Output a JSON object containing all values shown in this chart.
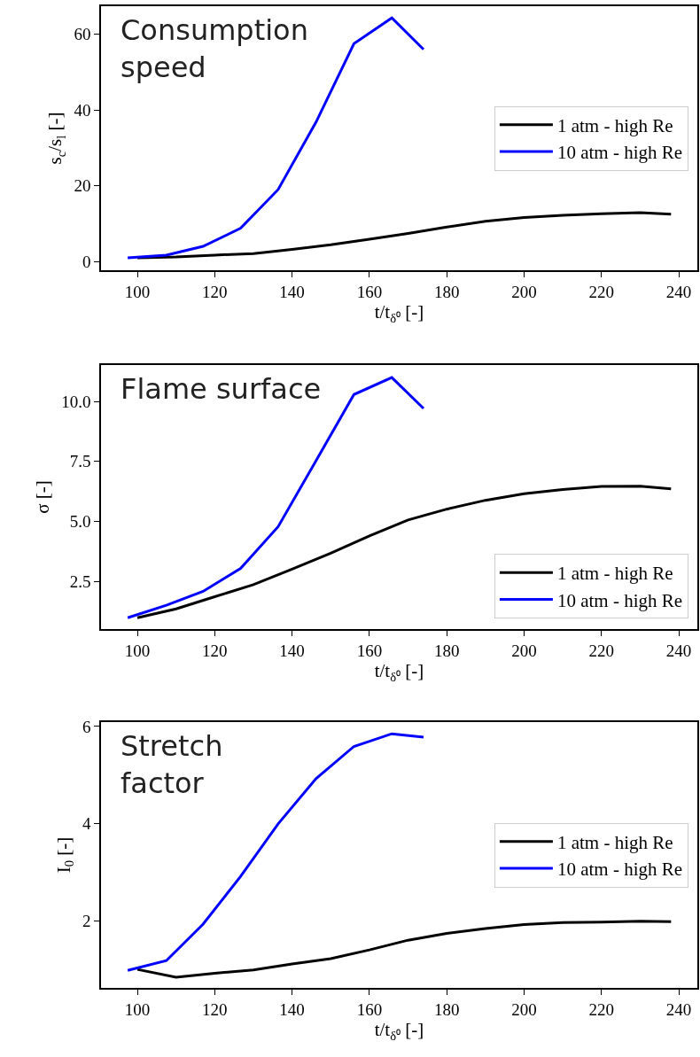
{
  "chart_data": [
    {
      "type": "line",
      "title": "Consumption speed",
      "xlabel": "t/t$_{δ⁰}$ [-]",
      "ylabel": "s$_{c}$/s$_{l}$ [-]",
      "xlim": [
        90.6,
        244.8
      ],
      "xticks": [
        100,
        120,
        140,
        160,
        180,
        200,
        220,
        240
      ],
      "ylim": [
        -2.3,
        67.4
      ],
      "yticks": [
        0,
        20,
        40,
        60
      ],
      "legend": "right",
      "series": [
        {
          "name": "1 atm - high Re",
          "color": "#000000",
          "x": [
            100,
            110,
            120,
            130,
            140,
            150,
            160,
            170,
            180,
            190,
            200,
            210,
            220,
            230,
            238
          ],
          "values": [
            1.0,
            1.2,
            1.7,
            2.1,
            3.2,
            4.4,
            5.9,
            7.4,
            9.1,
            10.6,
            11.6,
            12.2,
            12.6,
            12.9,
            12.5
          ]
        },
        {
          "name": "10 atm - high Re",
          "color": "#0000ff",
          "x": [
            97.5,
            107.5,
            117,
            126.7,
            136.4,
            146.2,
            156,
            165.8,
            174
          ],
          "values": [
            1.0,
            1.7,
            4.0,
            8.8,
            19.0,
            36.8,
            57.5,
            64.3,
            56.0
          ]
        }
      ]
    },
    {
      "type": "line",
      "title": "Flame surface",
      "xlabel": "t/t$_{δ⁰}$ [-]",
      "ylabel": "σ [-]",
      "xlim": [
        90.6,
        244.8
      ],
      "xticks": [
        100,
        120,
        140,
        160,
        180,
        200,
        220,
        240
      ],
      "ylim": [
        0.51,
        11.52
      ],
      "yticks": [
        2.5,
        {
          "value": 5,
          "label": "5.0"
        },
        7.5,
        {
          "value": 10,
          "label": "10.0"
        }
      ],
      "legend": "bottom right",
      "series": [
        {
          "name": "1 atm - high Re",
          "color": "#000000",
          "x": [
            100,
            110,
            120,
            130,
            140,
            150,
            160,
            170,
            180,
            190,
            200,
            210,
            220,
            230,
            238
          ],
          "values": [
            0.98,
            1.35,
            1.86,
            2.36,
            3.01,
            3.67,
            4.39,
            5.06,
            5.51,
            5.88,
            6.15,
            6.33,
            6.46,
            6.47,
            6.36
          ]
        },
        {
          "name": "10 atm - high Re",
          "color": "#0000ff",
          "x": [
            97.5,
            107.5,
            117,
            126.7,
            136.4,
            146.2,
            156,
            165.8,
            174
          ],
          "values": [
            0.98,
            1.5,
            2.08,
            3.04,
            4.78,
            7.53,
            10.29,
            11.0,
            9.71
          ]
        }
      ]
    },
    {
      "type": "line",
      "title": "Stretch factor",
      "xlabel": "t/t$_{δ⁰}$ [-]",
      "ylabel": "I$_{0}$ [-]",
      "xlim": [
        90.6,
        244.8
      ],
      "xticks": [
        100,
        120,
        140,
        160,
        180,
        200,
        220,
        240
      ],
      "ylim": [
        0.63,
        6.09
      ],
      "yticks": [
        2,
        4,
        6
      ],
      "legend": "right",
      "series": [
        {
          "name": "1 atm - high Re",
          "color": "#000000",
          "x": [
            100,
            110,
            120,
            130,
            140,
            150,
            160,
            170,
            180,
            190,
            200,
            210,
            220,
            230,
            238
          ],
          "values": [
            1.01,
            0.85,
            0.93,
            1.0,
            1.12,
            1.23,
            1.41,
            1.61,
            1.75,
            1.85,
            1.93,
            1.97,
            1.98,
            2.0,
            1.99
          ]
        },
        {
          "name": "10 atm - high Re",
          "color": "#0000ff",
          "x": [
            97.5,
            107.5,
            117,
            126.7,
            136.4,
            146.2,
            156,
            165.8,
            174
          ],
          "values": [
            0.99,
            1.19,
            1.94,
            2.92,
            4.0,
            4.93,
            5.59,
            5.85,
            5.78
          ]
        }
      ]
    }
  ]
}
